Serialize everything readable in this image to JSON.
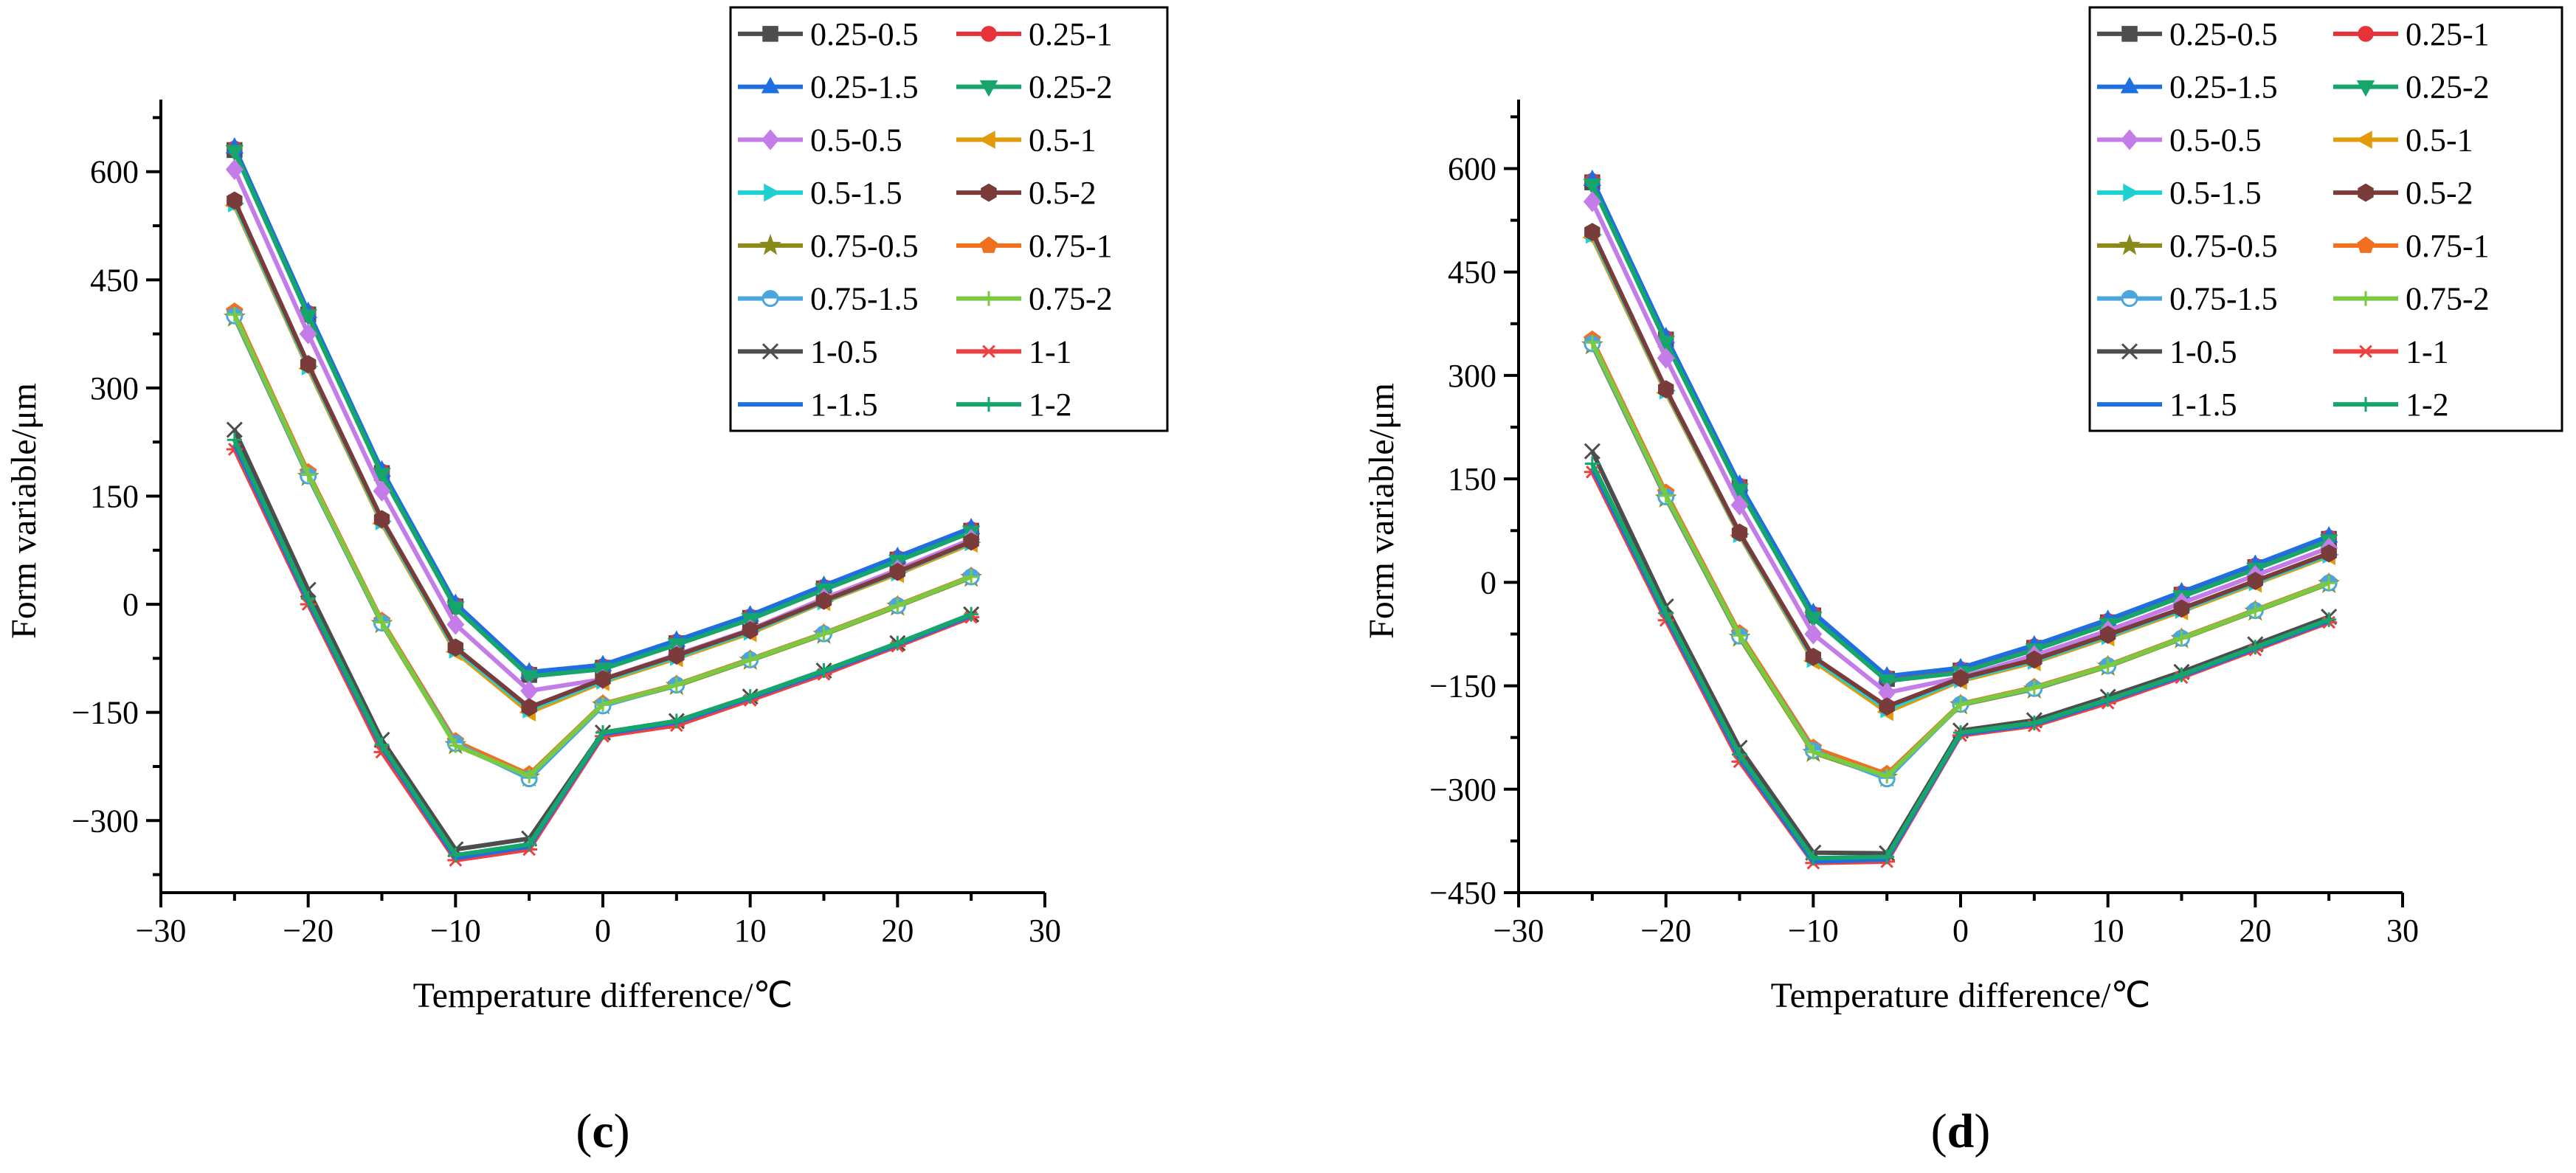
{
  "chart_data": [
    {
      "type": "line",
      "panel_label": "(c)",
      "xlabel": "Temperature difference/℃",
      "ylabel": "Form variable/μm",
      "xlim": [
        -30,
        30
      ],
      "ylim": [
        -400,
        700
      ],
      "xticks": [
        -30,
        -20,
        -10,
        0,
        10,
        20,
        30
      ],
      "yticks": [
        -300,
        -150,
        0,
        150,
        300,
        450,
        600
      ],
      "xtick_labels": [
        "−30",
        "−20",
        "−10",
        "0",
        "10",
        "20",
        "30"
      ],
      "ytick_labels": [
        "−300",
        "−150",
        "0",
        "150",
        "300",
        "450",
        "600"
      ],
      "x": [
        -25,
        -20,
        -15,
        -10,
        -5,
        0,
        5,
        10,
        15,
        20,
        25
      ],
      "legend": "top-right",
      "series": [
        {
          "name": "0.25-0.5",
          "color": "#4d4d4d",
          "marker": "square",
          "values": [
            630,
            402,
            182,
            -3,
            -98,
            -88,
            -54,
            -19,
            22,
            62,
            102
          ]
        },
        {
          "name": "0.25-1",
          "color": "#e8323a",
          "marker": "circle",
          "values": [
            632,
            404,
            184,
            -1,
            -96,
            -86,
            -52,
            -17,
            24,
            64,
            104
          ]
        },
        {
          "name": "0.25-1.5",
          "color": "#1f6fe0",
          "marker": "triangle-up",
          "values": [
            634,
            406,
            186,
            1,
            -94,
            -84,
            -50,
            -15,
            26,
            66,
            106
          ]
        },
        {
          "name": "0.25-2",
          "color": "#16a56a",
          "marker": "triangle-down",
          "values": [
            628,
            400,
            180,
            -5,
            -100,
            -90,
            -56,
            -21,
            20,
            60,
            100
          ]
        },
        {
          "name": "0.5-0.5",
          "color": "#c47ce8",
          "marker": "diamond",
          "values": [
            603,
            375,
            157,
            -28,
            -120,
            -104,
            -70,
            -35,
            8,
            48,
            90
          ]
        },
        {
          "name": "0.5-1",
          "color": "#e39b0b",
          "marker": "triangle-left",
          "values": [
            553,
            327,
            112,
            -66,
            -150,
            -108,
            -75,
            -40,
            3,
            42,
            84
          ]
        },
        {
          "name": "0.5-1.5",
          "color": "#1fd0d0",
          "marker": "triangle-right",
          "values": [
            556,
            330,
            115,
            -63,
            -146,
            -106,
            -73,
            -38,
            4,
            44,
            86
          ]
        },
        {
          "name": "0.5-2",
          "color": "#7a3b3b",
          "marker": "hexagon",
          "values": [
            560,
            333,
            118,
            -60,
            -143,
            -104,
            -71,
            -36,
            5,
            45,
            87
          ]
        },
        {
          "name": "0.75-0.5",
          "color": "#8a8a1a",
          "marker": "star",
          "values": [
            398,
            177,
            -27,
            -195,
            -240,
            -140,
            -113,
            -78,
            -42,
            -3,
            37
          ]
        },
        {
          "name": "0.75-1",
          "color": "#f07020",
          "marker": "pentagon",
          "values": [
            406,
            183,
            -23,
            -190,
            -236,
            -138,
            -111,
            -76,
            -40,
            -1,
            39
          ]
        },
        {
          "name": "0.75-1.5",
          "color": "#4aa6dd",
          "marker": "circle-half",
          "values": [
            400,
            178,
            -26,
            -193,
            -242,
            -141,
            -112,
            -77,
            -41,
            -2,
            38
          ]
        },
        {
          "name": "0.75-2",
          "color": "#7ac943",
          "marker": "plus",
          "values": [
            402,
            180,
            -25,
            -196,
            -238,
            -139,
            -112,
            -77,
            -41,
            -2,
            38
          ]
        },
        {
          "name": "1-0.5",
          "color": "#4d4d4d",
          "marker": "x",
          "values": [
            242,
            20,
            -188,
            -340,
            -325,
            -178,
            -162,
            -128,
            -92,
            -54,
            -14
          ]
        },
        {
          "name": "1-1",
          "color": "#ee4040",
          "marker": "asterisk",
          "values": [
            215,
            0,
            -205,
            -355,
            -340,
            -183,
            -168,
            -133,
            -97,
            -58,
            -18
          ]
        },
        {
          "name": "1-1.5",
          "color": "#1f6fe0",
          "marker": "none",
          "values": [
            222,
            4,
            -198,
            -352,
            -336,
            -180,
            -164,
            -130,
            -94,
            -56,
            -16
          ]
        },
        {
          "name": "1-2",
          "color": "#16a56a",
          "marker": "plus",
          "values": [
            228,
            8,
            -195,
            -348,
            -333,
            -178,
            -162,
            -128,
            -92,
            -54,
            -14
          ]
        }
      ]
    },
    {
      "type": "line",
      "panel_label": "(d)",
      "xlabel": "Temperature difference/℃",
      "ylabel": "Form variable/μm",
      "xlim": [
        -30,
        30
      ],
      "ylim": [
        -450,
        700
      ],
      "xticks": [
        -30,
        -20,
        -10,
        0,
        10,
        20,
        30
      ],
      "yticks": [
        -450,
        -300,
        -150,
        0,
        150,
        300,
        450,
        600
      ],
      "xtick_labels": [
        "−30",
        "−20",
        "−10",
        "0",
        "10",
        "20",
        "30"
      ],
      "ytick_labels": [
        "−450",
        "−300",
        "−150",
        "0",
        "150",
        "300",
        "450",
        "600"
      ],
      "x": [
        -25,
        -20,
        -15,
        -10,
        -5,
        0,
        5,
        10,
        15,
        20,
        25
      ],
      "legend": "top-right",
      "series": [
        {
          "name": "0.25-0.5",
          "color": "#4d4d4d",
          "marker": "square",
          "values": [
            580,
            352,
            138,
            -48,
            -140,
            -128,
            -95,
            -58,
            -18,
            22,
            63
          ]
        },
        {
          "name": "0.25-1",
          "color": "#e8323a",
          "marker": "circle",
          "values": [
            582,
            354,
            140,
            -46,
            -138,
            -126,
            -93,
            -56,
            -16,
            24,
            65
          ]
        },
        {
          "name": "0.25-1.5",
          "color": "#1f6fe0",
          "marker": "triangle-up",
          "values": [
            584,
            356,
            142,
            -44,
            -136,
            -124,
            -91,
            -54,
            -14,
            26,
            67
          ]
        },
        {
          "name": "0.25-2",
          "color": "#16a56a",
          "marker": "triangle-down",
          "values": [
            576,
            348,
            134,
            -52,
            -143,
            -131,
            -98,
            -61,
            -21,
            19,
            60
          ]
        },
        {
          "name": "0.5-0.5",
          "color": "#c47ce8",
          "marker": "diamond",
          "values": [
            552,
            325,
            112,
            -75,
            -160,
            -138,
            -106,
            -70,
            -30,
            10,
            50
          ]
        },
        {
          "name": "0.5-1",
          "color": "#e39b0b",
          "marker": "triangle-left",
          "values": [
            500,
            275,
            68,
            -114,
            -188,
            -143,
            -116,
            -80,
            -42,
            -2,
            38
          ]
        },
        {
          "name": "0.5-1.5",
          "color": "#1fd0d0",
          "marker": "triangle-right",
          "values": [
            504,
            278,
            70,
            -111,
            -184,
            -141,
            -114,
            -78,
            -40,
            0,
            40
          ]
        },
        {
          "name": "0.5-2",
          "color": "#7a3b3b",
          "marker": "hexagon",
          "values": [
            508,
            280,
            72,
            -108,
            -180,
            -139,
            -112,
            -76,
            -38,
            2,
            42
          ]
        },
        {
          "name": "0.75-0.5",
          "color": "#8a8a1a",
          "marker": "star",
          "values": [
            344,
            122,
            -80,
            -247,
            -283,
            -178,
            -155,
            -122,
            -82,
            -42,
            -2
          ]
        },
        {
          "name": "0.75-1",
          "color": "#f07020",
          "marker": "pentagon",
          "values": [
            352,
            130,
            -74,
            -240,
            -278,
            -176,
            -152,
            -120,
            -80,
            -40,
            0
          ]
        },
        {
          "name": "0.75-1.5",
          "color": "#4aa6dd",
          "marker": "circle-half",
          "values": [
            346,
            124,
            -78,
            -244,
            -285,
            -177,
            -154,
            -121,
            -81,
            -41,
            -1
          ]
        },
        {
          "name": "0.75-2",
          "color": "#7ac943",
          "marker": "plus",
          "values": [
            348,
            126,
            -77,
            -246,
            -281,
            -177,
            -153,
            -121,
            -81,
            -41,
            -1
          ]
        },
        {
          "name": "1-0.5",
          "color": "#4d4d4d",
          "marker": "x",
          "values": [
            190,
            -35,
            -240,
            -392,
            -393,
            -215,
            -200,
            -166,
            -130,
            -90,
            -50
          ]
        },
        {
          "name": "1-1",
          "color": "#ee4040",
          "marker": "asterisk",
          "values": [
            160,
            -55,
            -260,
            -407,
            -405,
            -222,
            -208,
            -175,
            -138,
            -98,
            -58
          ]
        },
        {
          "name": "1-1.5",
          "color": "#1f6fe0",
          "marker": "none",
          "values": [
            166,
            -50,
            -255,
            -405,
            -402,
            -220,
            -206,
            -172,
            -136,
            -96,
            -56
          ]
        },
        {
          "name": "1-2",
          "color": "#16a56a",
          "marker": "plus",
          "values": [
            172,
            -45,
            -250,
            -400,
            -398,
            -218,
            -204,
            -170,
            -134,
            -94,
            -54
          ]
        }
      ]
    }
  ]
}
